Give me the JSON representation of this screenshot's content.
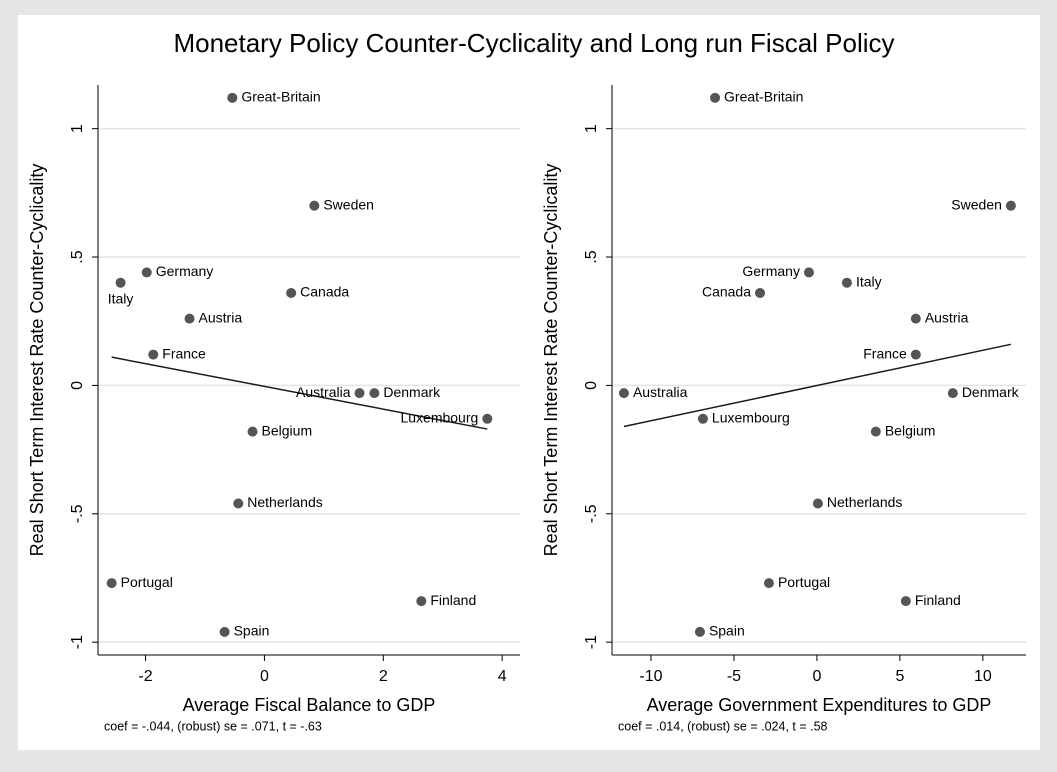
{
  "title": "Monetary Policy Counter-Cyclicality and Long run Fiscal Policy",
  "chart_data": [
    {
      "type": "scatter",
      "x_label": "Average Fiscal Balance to GDP",
      "y_label": "Real Short Term Interest Rate Counter-Cyclicality",
      "note": "coef = -.044, (robust) se = .071, t = -.63",
      "labels": [
        "Great-Britain",
        "Sweden",
        "Germany",
        "Italy",
        "Canada",
        "Austria",
        "France",
        "Australia",
        "Denmark",
        "Luxembourg",
        "Belgium",
        "Netherlands",
        "Portugal",
        "Finland",
        "Spain"
      ],
      "x": [
        -0.54,
        0.84,
        -1.98,
        -2.42,
        0.45,
        -1.26,
        -1.87,
        1.6,
        1.85,
        3.75,
        -0.2,
        -0.44,
        -2.57,
        2.64,
        -0.67
      ],
      "y": [
        1.12,
        0.7,
        0.44,
        0.4,
        0.36,
        0.26,
        0.12,
        -0.03,
        -0.03,
        -0.13,
        -0.18,
        -0.46,
        -0.77,
        -0.84,
        -0.96
      ],
      "fit": {
        "x": [
          -2.57,
          3.75
        ],
        "y": [
          0.11,
          -0.17
        ]
      },
      "color": "#555555",
      "xlim": [
        -2.8,
        4.3
      ],
      "ylim": [
        -1.05,
        1.17
      ],
      "xticks": [
        -2,
        0,
        2,
        4
      ],
      "yticks": [
        {
          "value": -1,
          "label": "-1"
        },
        {
          "value": -0.5,
          "label": "-.5"
        },
        0,
        {
          "value": 0.5,
          "label": ".5"
        },
        1
      ],
      "grid": true
    },
    {
      "type": "scatter",
      "x_label": "Average Government Expenditures to GDP",
      "y_label": "Real Short Term Interest Rate Counter-Cyclicality",
      "note": "coef = .014, (robust) se = .024, t = .58",
      "labels": [
        "Great-Britain",
        "Sweden",
        "Germany",
        "Italy",
        "Canada",
        "Austria",
        "France",
        "Australia",
        "Denmark",
        "Luxembourg",
        "Belgium",
        "Netherlands",
        "Portugal",
        "Finland",
        "Spain"
      ],
      "x": [
        -6.14,
        11.69,
        -0.48,
        1.81,
        -3.43,
        5.96,
        5.96,
        -11.63,
        8.19,
        -6.87,
        3.55,
        0.06,
        -2.89,
        5.36,
        -7.05
      ],
      "y": [
        1.12,
        0.7,
        0.44,
        0.4,
        0.36,
        0.26,
        0.12,
        -0.03,
        -0.03,
        -0.13,
        -0.18,
        -0.46,
        -0.77,
        -0.84,
        -0.96
      ],
      "fit": {
        "x": [
          -11.63,
          11.69
        ],
        "y": [
          -0.16,
          0.16
        ]
      },
      "color": "#555555",
      "xlim": [
        -12.35,
        12.6
      ],
      "ylim": [
        -1.05,
        1.17
      ],
      "xticks": [
        -10,
        -5,
        0,
        5,
        10
      ],
      "yticks": [
        {
          "value": -1,
          "label": "-1"
        },
        {
          "value": -0.5,
          "label": "-.5"
        },
        0,
        {
          "value": 0.5,
          "label": ".5"
        },
        1
      ],
      "grid": true
    }
  ]
}
